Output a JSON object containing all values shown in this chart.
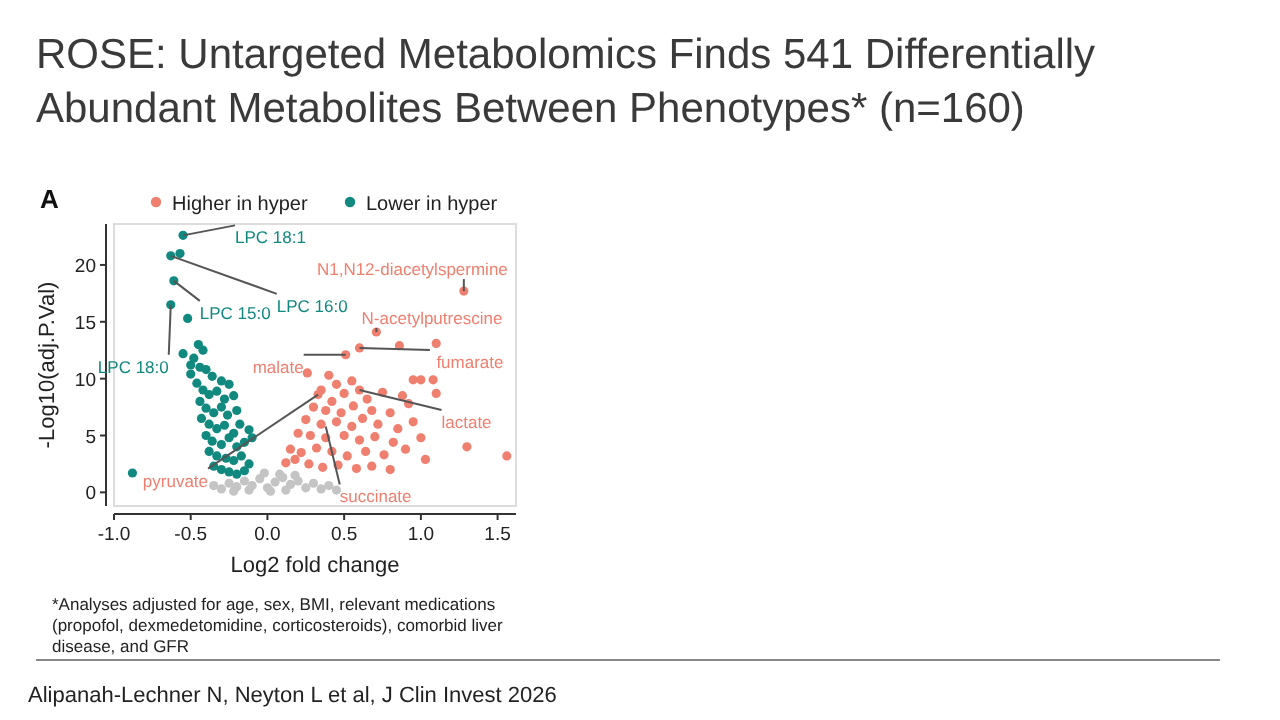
{
  "chart_data": {
    "type": "scatter",
    "title": "ROSE:  Untargeted Metabolomics Finds 541 Differentially Abundant Metabolites Between Phenotypes* (n=160)",
    "xlabel": "Log2 fold change",
    "ylabel": "-Log10(adj.P.Val)",
    "xlim": [
      -1.0,
      1.62
    ],
    "ylim": [
      -1.2,
      23.6
    ],
    "xticks": [
      {
        "value": -1,
        "label": "-1.0"
      },
      {
        "value": -0.5,
        "label": "-0.5"
      },
      {
        "value": 0,
        "label": "0.0"
      },
      {
        "value": 0.5,
        "label": "0.5"
      },
      {
        "value": 1,
        "label": "1.0"
      },
      {
        "value": 1.5,
        "label": "1.5"
      }
    ],
    "yticks": [
      0,
      5,
      10,
      15,
      20
    ],
    "grid": false,
    "legend": "top",
    "marker": "circle",
    "series": [
      {
        "name": "Higher in hyper",
        "color": "#ef7f6f",
        "x": [
          1.28,
          0.71,
          0.6,
          0.51,
          0.86,
          1.1,
          0.26,
          1.56,
          1.03,
          1.1,
          0.95,
          1.0,
          1.08,
          0.4,
          0.45,
          0.55,
          0.35,
          0.5,
          0.6,
          0.33,
          0.42,
          0.65,
          0.75,
          0.88,
          0.3,
          0.38,
          0.48,
          0.56,
          0.68,
          0.8,
          0.92,
          0.25,
          0.35,
          0.45,
          0.55,
          0.62,
          0.72,
          0.85,
          0.95,
          0.2,
          0.28,
          0.38,
          0.5,
          0.6,
          0.7,
          0.82,
          0.15,
          0.22,
          0.32,
          0.42,
          0.52,
          0.64,
          0.76,
          0.9,
          0.12,
          0.18,
          0.27,
          0.36,
          0.46,
          0.58,
          0.68,
          0.8,
          1.3,
          1.0
        ],
        "values": [
          17.7,
          14.1,
          12.7,
          12.1,
          12.9,
          13.1,
          10.5,
          3.2,
          2.9,
          8.7,
          9.9,
          9.9,
          9.9,
          10.3,
          9.5,
          9.8,
          9.0,
          8.7,
          9.0,
          8.6,
          8.0,
          8.2,
          8.8,
          8.5,
          7.5,
          7.2,
          7.0,
          7.6,
          7.2,
          7.0,
          7.8,
          6.4,
          6.0,
          6.2,
          5.8,
          6.5,
          6.0,
          5.6,
          6.2,
          5.2,
          5.0,
          4.8,
          5.0,
          4.6,
          4.9,
          4.4,
          3.8,
          3.5,
          3.9,
          3.6,
          3.2,
          3.6,
          3.3,
          3.8,
          2.6,
          2.9,
          2.5,
          2.2,
          2.4,
          2.1,
          2.3,
          2.0,
          4.0,
          4.8
        ]
      },
      {
        "name": "Lower in hyper",
        "color": "#11897f",
        "x": [
          -0.55,
          -0.63,
          -0.57,
          -0.61,
          -0.63,
          -0.52,
          -0.88,
          -0.45,
          -0.42,
          -0.48,
          -0.44,
          -0.5,
          -0.4,
          -0.36,
          -0.3,
          -0.25,
          -0.46,
          -0.42,
          -0.38,
          -0.33,
          -0.28,
          -0.22,
          -0.44,
          -0.4,
          -0.35,
          -0.3,
          -0.26,
          -0.2,
          -0.43,
          -0.38,
          -0.33,
          -0.28,
          -0.22,
          -0.18,
          -0.4,
          -0.36,
          -0.3,
          -0.25,
          -0.2,
          -0.15,
          -0.38,
          -0.33,
          -0.27,
          -0.22,
          -0.17,
          -0.12,
          -0.35,
          -0.3,
          -0.25,
          -0.2,
          -0.15,
          -0.1,
          -0.12,
          -0.5,
          -0.55
        ],
        "values": [
          22.6,
          20.8,
          21.0,
          18.6,
          16.5,
          15.3,
          1.7,
          13.0,
          12.5,
          11.8,
          11.0,
          10.4,
          10.8,
          10.2,
          9.8,
          9.5,
          9.6,
          9.0,
          8.6,
          8.9,
          8.2,
          8.5,
          8.0,
          7.4,
          7.0,
          7.5,
          6.8,
          7.2,
          6.5,
          6.0,
          5.6,
          5.9,
          5.2,
          6.0,
          5.0,
          4.5,
          4.2,
          4.8,
          4.0,
          4.4,
          3.6,
          3.2,
          3.0,
          2.8,
          3.2,
          2.5,
          2.3,
          2.0,
          1.8,
          1.6,
          1.9,
          4.8,
          5.5,
          11.2,
          12.2
        ]
      },
      {
        "color": "#c4c4c4",
        "x": [
          -0.3,
          -0.25,
          -0.2,
          -0.15,
          -0.1,
          -0.05,
          0.0,
          0.05,
          0.1,
          0.15,
          0.2,
          0.25,
          0.3,
          0.35,
          0.4,
          0.45,
          -0.12,
          0.02,
          0.12,
          -0.22,
          0.08,
          -0.02,
          0.18,
          -0.35
        ],
        "values": [
          0.3,
          0.8,
          0.5,
          1.0,
          0.6,
          1.2,
          0.4,
          0.9,
          1.3,
          0.7,
          1.0,
          0.4,
          0.8,
          0.3,
          0.6,
          0.2,
          0.2,
          0.1,
          0.2,
          0.1,
          1.6,
          1.7,
          1.5,
          0.6
        ]
      }
    ],
    "annotations": [
      "A",
      {
        "text": "LPC 18:1",
        "x": -0.55,
        "y": 22.6
      },
      {
        "text": "LPC 16:0",
        "x": -0.63,
        "y": 20.8
      },
      {
        "text": "LPC 15:0",
        "x": -0.61,
        "y": 18.6
      },
      {
        "text": "LPC 18:0",
        "x": -0.63,
        "y": 16.5
      },
      {
        "text": "N1,N12-diacetylspermine",
        "x": 1.28,
        "y": 17.7
      },
      {
        "text": "N-acetylputrescine",
        "x": 0.71,
        "y": 14.1
      },
      {
        "text": "fumarate",
        "x": 0.6,
        "y": 12.7
      },
      {
        "text": "malate",
        "x": 0.51,
        "y": 12.1
      },
      {
        "text": "pyruvate",
        "x": 0.33,
        "y": 8.6
      },
      {
        "text": "lactate",
        "x": 0.6,
        "y": 9.0
      },
      {
        "text": "succinate",
        "x": 0.38,
        "y": 5.8
      },
      "*Analyses adjusted for age, sex, BMI, relevant medications (propofol, dexmedetomidine, corticosteroids), comorbid liver disease, and GFR",
      "Alipanah-Lechner N, Neyton L et al, J Clin Invest 2026"
    ]
  }
}
